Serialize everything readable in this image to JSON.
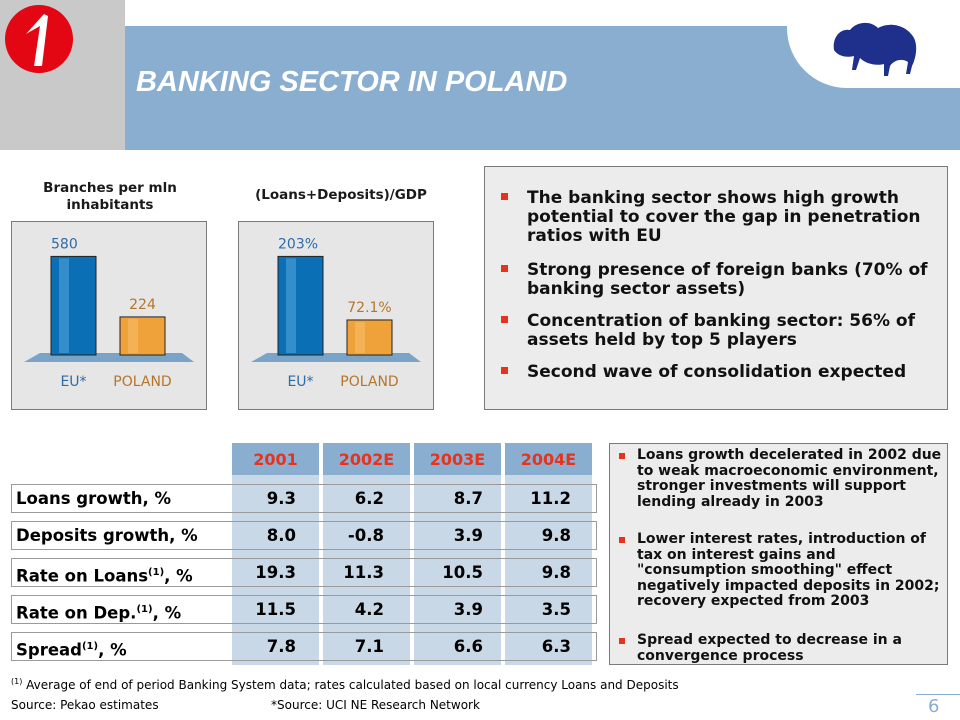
{
  "header": {
    "title": "BANKING SECTOR IN POLAND"
  },
  "chart_data": [
    {
      "type": "bar",
      "title": "Branches per mln inhabitants",
      "categories": [
        "EU*",
        "POLAND"
      ],
      "values": [
        580,
        224
      ],
      "value_labels": [
        "580",
        "224"
      ],
      "ylim": [
        0,
        600
      ]
    },
    {
      "type": "bar",
      "title": "(Loans+Deposits)/GDP",
      "categories": [
        "EU*",
        "POLAND"
      ],
      "values": [
        203,
        72.1
      ],
      "value_labels": [
        "203%",
        "72.1%"
      ],
      "ylim": [
        0,
        210
      ]
    }
  ],
  "bullets_top": [
    "The banking sector shows high growth potential to cover the gap in penetration ratios with EU",
    "Strong presence of foreign banks (70% of banking sector assets)",
    "Concentration of banking sector: 56% of assets held by top 5 players",
    "Second wave of consolidation expected"
  ],
  "table": {
    "columns": [
      "2001",
      "2002E",
      "2003E",
      "2004E"
    ],
    "rows": [
      {
        "label": "Loans growth, %",
        "sup": "",
        "suffix": "",
        "values": [
          "9.3",
          "6.2",
          "8.7",
          "11.2"
        ]
      },
      {
        "label": "Deposits growth, %",
        "sup": "",
        "suffix": "",
        "values": [
          "8.0",
          "-0.8",
          "3.9",
          "9.8"
        ]
      },
      {
        "label": "Rate on Loans",
        "sup": "(1)",
        "suffix": ", %",
        "values": [
          "19.3",
          "11.3",
          "10.5",
          "9.8"
        ]
      },
      {
        "label": "Rate on Dep.",
        "sup": "(1)",
        "suffix": ", %",
        "values": [
          "11.5",
          "4.2",
          "3.9",
          "3.5"
        ]
      },
      {
        "label": "Spread",
        "sup": "(1)",
        "suffix": ", %",
        "values": [
          "7.8",
          "7.1",
          "6.6",
          "6.3"
        ]
      }
    ]
  },
  "bullets_bottom": [
    "Loans growth decelerated in 2002 due to weak macroeconomic environment, stronger investments will support lending already in 2003",
    "Lower interest rates, introduction of tax on interest gains and \"consumption smoothing\" effect negatively impacted deposits in 2002; recovery expected from 2003",
    "Spread expected to decrease in a convergence process"
  ],
  "footnotes": {
    "sup": "(1)",
    "note": "Average of end of period Banking System data; rates calculated based on local currency Loans and Deposits",
    "source": "Source: Pekao estimates",
    "source2": "*Source: UCI NE Research Network"
  },
  "page_number": "6",
  "colors": {
    "accent": "#e8331c",
    "band": "#8aaed0",
    "bar_eu": "#0b6fb5",
    "bar_pl": "#f0a23a"
  }
}
